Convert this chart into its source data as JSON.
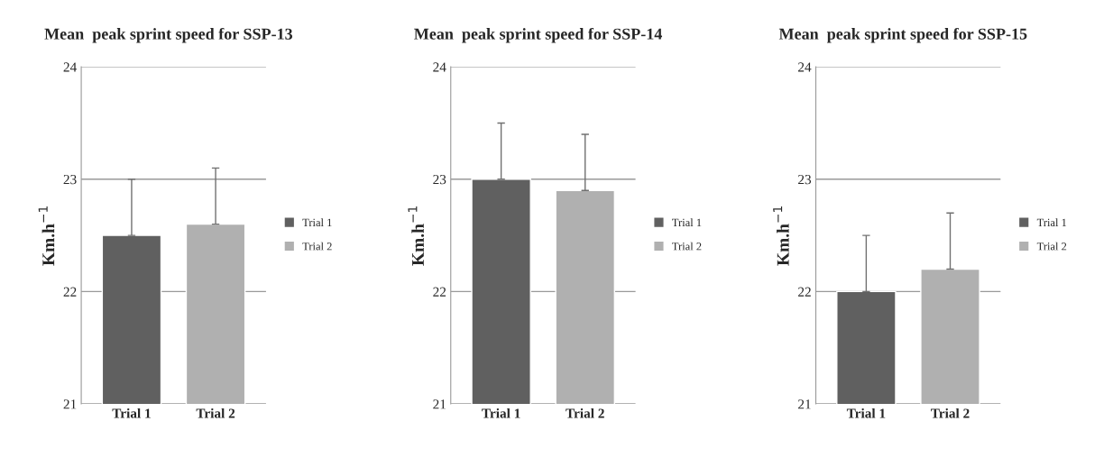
{
  "chart_data": [
    {
      "type": "bar",
      "title": "Mean  peak sprint speed for SSP-13",
      "ylabel": "Km.h$^{−1}$",
      "categories": [
        "Trial 1",
        "Trial 2"
      ],
      "series": [
        {
          "name": "Trial 1",
          "color": "#606060",
          "values": [
            22.5,
            null
          ],
          "errors": [
            [
              22.5,
              23.0
            ],
            null
          ]
        },
        {
          "name": "Trial 2",
          "color": "#b0b0b0",
          "values": [
            null,
            22.6
          ],
          "errors": [
            null,
            [
              22.6,
              23.1
            ]
          ]
        }
      ],
      "ylim": [
        21,
        24
      ],
      "yticks": [
        21,
        22,
        23,
        24
      ],
      "grid": "y",
      "legend": "right"
    },
    {
      "type": "bar",
      "title": "Mean  peak sprint speed for SSP-14",
      "ylabel": "Km.h$^{−1}$",
      "categories": [
        "Trial 1",
        "Trial 2"
      ],
      "series": [
        {
          "name": "Trial 1",
          "color": "#606060",
          "values": [
            23.0,
            null
          ],
          "errors": [
            [
              23.0,
              23.5
            ],
            null
          ]
        },
        {
          "name": "Trial 2",
          "color": "#b0b0b0",
          "values": [
            null,
            22.9
          ],
          "errors": [
            null,
            [
              22.9,
              23.4
            ]
          ]
        }
      ],
      "ylim": [
        21,
        24
      ],
      "yticks": [
        21,
        22,
        23,
        24
      ],
      "grid": "y",
      "legend": "right"
    },
    {
      "type": "bar",
      "title": "Mean  peak sprint speed for SSP-15",
      "ylabel": "Km.h$^{−1}$",
      "categories": [
        "Trial 1",
        "Trial 2"
      ],
      "series": [
        {
          "name": "Trial 1",
          "color": "#606060",
          "values": [
            22.0,
            null
          ],
          "errors": [
            [
              22.0,
              22.5
            ],
            null
          ]
        },
        {
          "name": "Trial 2",
          "color": "#b0b0b0",
          "values": [
            null,
            22.2
          ],
          "errors": [
            null,
            [
              22.2,
              22.7
            ]
          ]
        }
      ],
      "ylim": [
        21,
        24
      ],
      "yticks": [
        21,
        22,
        23,
        24
      ],
      "grid": "y",
      "legend": "right"
    }
  ]
}
